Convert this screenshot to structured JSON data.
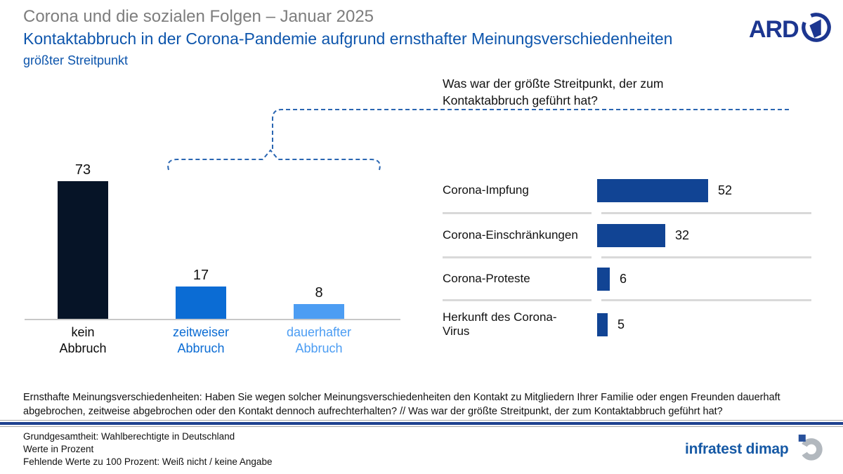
{
  "header": {
    "kicker": "Corona und die sozialen Folgen – Januar 2025",
    "title": "Kontaktabbruch in der Corona-Pandemie aufgrund ernsthafter Meinungsverschiedenheiten",
    "subtitle": "größter Streitpunkt"
  },
  "brand": {
    "ard_label": "ARD",
    "infratest_label": "infratest dimap"
  },
  "question": "Was war der größte Streitpunkt, der zum Kontaktabbruch geführt hat?",
  "chart_data": [
    {
      "type": "bar",
      "orientation": "vertical",
      "title": "Kontaktabbruch in der Corona-Pandemie",
      "categories": [
        "kein Abbruch",
        "zeitweiser Abbruch",
        "dauerhafter Abbruch"
      ],
      "category_display": [
        "kein\nAbbruch",
        "zeitweiser\nAbbruch",
        "dauerhafter\nAbbruch"
      ],
      "values": [
        73,
        17,
        8
      ],
      "bar_colors": [
        "#061427",
        "#0b6cd4",
        "#4c9df3"
      ],
      "label_colors": [
        "#0a0a0a",
        "#0b6cd4",
        "#4c9df3"
      ],
      "unit": "Prozent",
      "ylim": [
        0,
        80
      ],
      "grid": false
    },
    {
      "type": "bar",
      "orientation": "horizontal",
      "title": "Was war der größte Streitpunkt, der zum Kontaktabbruch geführt hat?",
      "categories": [
        "Corona-Impfung",
        "Corona-Einschränkungen",
        "Corona-Proteste",
        "Herkunft des Corona-Virus"
      ],
      "category_display": [
        "Corona-Impfung",
        "Corona-Einschränkungen",
        "Corona-Proteste",
        "Herkunft des Corona-\nVirus"
      ],
      "values": [
        52,
        32,
        6,
        5
      ],
      "bar_color": "#114494",
      "unit": "Prozent",
      "xlim": [
        0,
        100
      ],
      "grid": false
    }
  ],
  "footer": {
    "methodology": "Ernsthafte Meinungsverschiedenheiten: Haben Sie wegen solcher Meinungsverschiedenheiten den Kontakt zu Mitgliedern Ihrer Familie oder engen Freunden dauerhaft abgebrochen, zeitweise abgebrochen oder den Kontakt dennoch aufrechterhalten? // Was war der größte Streitpunkt, der zum Kontaktabbruch geführt hat?",
    "notes": "Grundgesamtheit: Wahlberechtigte in Deutschland\nWerte in Prozent\nFehlende Werte zu 100 Prozent: Weiß nicht / keine Angabe"
  },
  "colors": {
    "heading_blue": "#0d55ac",
    "kicker_gray": "#7d7d7d",
    "connector_blue": "#2a66b2",
    "axis_gray": "#c8c8c8",
    "separator_gray": "#d9d9d9",
    "divider_blue": "#1e4190",
    "ard_navy": "#1c3690",
    "infratest_blue": "#1659a5"
  }
}
